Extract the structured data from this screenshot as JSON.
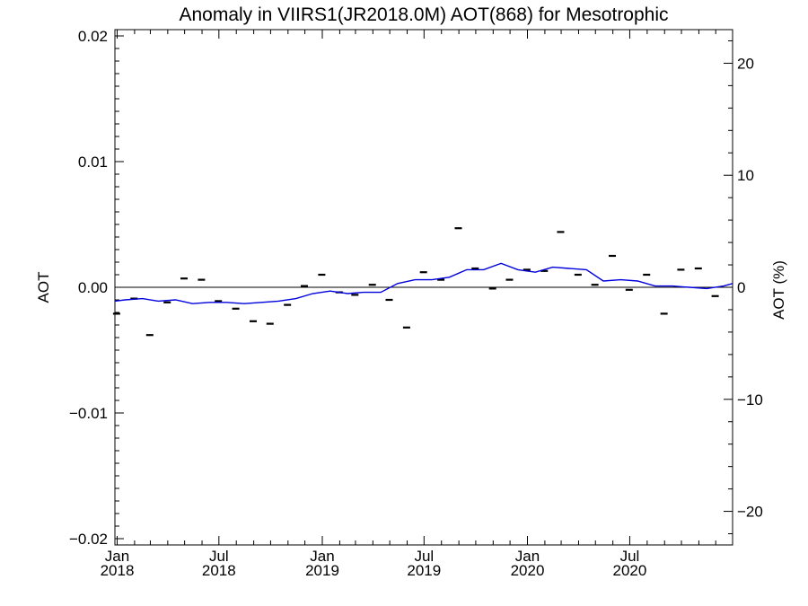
{
  "chart_data": {
    "type": "line",
    "title": "Anomaly in VIIRS1(JR2018.0M) AOT(868) for Mesotrophic",
    "ylabel": "AOT",
    "y2label": "AOT (%)",
    "xlim": [
      "2017-12-28",
      "2020-12-31"
    ],
    "ylim": [
      -0.0205,
      0.0205
    ],
    "y2lim": [
      -23,
      23
    ],
    "grid": false,
    "colors": {
      "line": "#0000dd",
      "markers": "#000000",
      "zero_line": "#000000"
    },
    "x_ticks": [
      {
        "date": "2018-01-01",
        "month": "Jan",
        "year": "2018"
      },
      {
        "date": "2018-07-01",
        "month": "Jul",
        "year": "2018"
      },
      {
        "date": "2019-01-01",
        "month": "Jan",
        "year": "2019"
      },
      {
        "date": "2019-07-01",
        "month": "Jul",
        "year": "2019"
      },
      {
        "date": "2020-01-01",
        "month": "Jan",
        "year": "2020"
      },
      {
        "date": "2020-07-01",
        "month": "Jul",
        "year": "2020"
      }
    ],
    "y_ticks": [
      {
        "value": 0.02,
        "label": "0.02"
      },
      {
        "value": 0.01,
        "label": "0.01"
      },
      {
        "value": 0.0,
        "label": "0.00"
      },
      {
        "value": -0.01,
        "label": "−0.01"
      },
      {
        "value": -0.02,
        "label": "−0.02"
      }
    ],
    "y2_ticks": [
      {
        "value": 20,
        "label": "20"
      },
      {
        "value": 10,
        "label": "10"
      },
      {
        "value": 0,
        "label": "0"
      },
      {
        "value": -10,
        "label": "−10"
      },
      {
        "value": -20,
        "label": "−20"
      }
    ],
    "series": [
      {
        "style": "line",
        "x": [
          "2017-12-28",
          "2018-01-15",
          "2018-02-15",
          "2018-03-15",
          "2018-04-15",
          "2018-05-15",
          "2018-06-15",
          "2018-07-15",
          "2018-08-15",
          "2018-09-15",
          "2018-10-15",
          "2018-11-15",
          "2018-12-15",
          "2019-01-15",
          "2019-02-15",
          "2019-03-15",
          "2019-04-15",
          "2019-05-15",
          "2019-06-15",
          "2019-07-15",
          "2019-08-15",
          "2019-09-15",
          "2019-10-15",
          "2019-11-15",
          "2019-12-15",
          "2020-01-15",
          "2020-02-15",
          "2020-03-15",
          "2020-04-15",
          "2020-05-15",
          "2020-06-15",
          "2020-07-15",
          "2020-08-15",
          "2020-09-15",
          "2020-10-15",
          "2020-11-15",
          "2020-12-15",
          "2020-12-31"
        ],
        "y": [
          -0.0011,
          -0.001,
          -0.0009,
          -0.0011,
          -0.001,
          -0.0013,
          -0.0012,
          -0.0012,
          -0.0013,
          -0.0012,
          -0.0011,
          -0.0009,
          -0.0005,
          -0.0003,
          -0.0005,
          -0.0004,
          -0.0004,
          0.0003,
          0.0006,
          0.0006,
          0.0008,
          0.0014,
          0.0014,
          0.0019,
          0.0014,
          0.0012,
          0.0016,
          0.0015,
          0.0014,
          0.0005,
          0.0006,
          0.0005,
          0.0001,
          0.0001,
          0.0,
          -0.0001,
          0.0001,
          0.0003
        ]
      },
      {
        "style": "markers",
        "x": [
          "2017-12-31",
          "2018-01-31",
          "2018-02-28",
          "2018-03-31",
          "2018-04-30",
          "2018-05-31",
          "2018-06-30",
          "2018-07-31",
          "2018-08-31",
          "2018-09-30",
          "2018-10-31",
          "2018-11-30",
          "2018-12-31",
          "2019-01-31",
          "2019-02-28",
          "2019-03-31",
          "2019-04-30",
          "2019-05-31",
          "2019-06-30",
          "2019-07-31",
          "2019-08-31",
          "2019-09-30",
          "2019-10-31",
          "2019-11-30",
          "2019-12-31",
          "2020-01-31",
          "2020-02-29",
          "2020-03-31",
          "2020-04-30",
          "2020-05-31",
          "2020-06-30",
          "2020-07-31",
          "2020-08-31",
          "2020-09-30",
          "2020-10-31",
          "2020-11-30"
        ],
        "y": [
          -0.0021,
          -0.0009,
          -0.0038,
          -0.0012,
          0.0007,
          0.0006,
          -0.0011,
          -0.0017,
          -0.0027,
          -0.0029,
          -0.0014,
          0.0001,
          0.001,
          -0.0004,
          -0.0006,
          0.0002,
          -0.001,
          -0.0032,
          0.0012,
          0.0006,
          0.0047,
          0.0015,
          -0.0001,
          0.0006,
          0.0014,
          0.0013,
          0.0044,
          0.001,
          0.0002,
          0.0025,
          -0.0002,
          0.001,
          -0.0021,
          0.0014,
          0.0015,
          -0.0007
        ]
      }
    ]
  }
}
